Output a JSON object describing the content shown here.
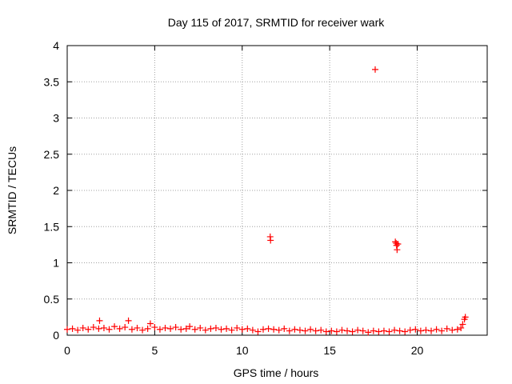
{
  "chart_data": {
    "type": "scatter",
    "title": "Day 115 of 2017, SRMTID for receiver wark",
    "xlabel": "GPS time / hours",
    "ylabel": "SRMTID / TECUs",
    "xlim": [
      0,
      24
    ],
    "ylim": [
      0,
      4
    ],
    "xticks": [
      0,
      5,
      10,
      15,
      20
    ],
    "xtick_labels": [
      "0",
      "5",
      "10",
      "15",
      "20"
    ],
    "yticks": [
      0,
      0.5,
      1,
      1.5,
      2,
      2.5,
      3,
      3.5,
      4
    ],
    "ytick_labels": [
      "0",
      "0.5",
      "1",
      "1.5",
      "2",
      "2.5",
      "3",
      "3.5",
      "4"
    ],
    "grid": true,
    "legend": "none",
    "marker": "+",
    "colors": {
      "series": "#ff0000",
      "grid": "#a0a0a0",
      "axis": "#000000"
    },
    "series": [
      {
        "name": "SRMTID",
        "points": [
          [
            0.0,
            0.08
          ],
          [
            0.3,
            0.09
          ],
          [
            0.6,
            0.07
          ],
          [
            0.9,
            0.1
          ],
          [
            1.2,
            0.08
          ],
          [
            1.5,
            0.11
          ],
          [
            1.8,
            0.09
          ],
          [
            1.85,
            0.2
          ],
          [
            2.1,
            0.1
          ],
          [
            2.4,
            0.08
          ],
          [
            2.7,
            0.12
          ],
          [
            3.0,
            0.09
          ],
          [
            3.3,
            0.11
          ],
          [
            3.5,
            0.2
          ],
          [
            3.7,
            0.08
          ],
          [
            4.0,
            0.1
          ],
          [
            4.3,
            0.07
          ],
          [
            4.6,
            0.09
          ],
          [
            4.75,
            0.16
          ],
          [
            5.0,
            0.11
          ],
          [
            5.3,
            0.08
          ],
          [
            5.6,
            0.1
          ],
          [
            5.9,
            0.09
          ],
          [
            6.2,
            0.11
          ],
          [
            6.5,
            0.08
          ],
          [
            6.8,
            0.09
          ],
          [
            7.0,
            0.12
          ],
          [
            7.3,
            0.08
          ],
          [
            7.6,
            0.1
          ],
          [
            7.9,
            0.07
          ],
          [
            8.2,
            0.09
          ],
          [
            8.5,
            0.1
          ],
          [
            8.8,
            0.08
          ],
          [
            9.1,
            0.09
          ],
          [
            9.4,
            0.07
          ],
          [
            9.7,
            0.1
          ],
          [
            10.0,
            0.08
          ],
          [
            10.3,
            0.09
          ],
          [
            10.6,
            0.07
          ],
          [
            10.9,
            0.05
          ],
          [
            11.2,
            0.08
          ],
          [
            11.5,
            0.09
          ],
          [
            11.6,
            1.36
          ],
          [
            11.62,
            1.31
          ],
          [
            11.8,
            0.08
          ],
          [
            12.1,
            0.07
          ],
          [
            12.4,
            0.09
          ],
          [
            12.7,
            0.06
          ],
          [
            13.0,
            0.08
          ],
          [
            13.3,
            0.07
          ],
          [
            13.6,
            0.06
          ],
          [
            13.9,
            0.08
          ],
          [
            14.2,
            0.06
          ],
          [
            14.5,
            0.07
          ],
          [
            14.8,
            0.05
          ],
          [
            15.1,
            0.06
          ],
          [
            15.4,
            0.05
          ],
          [
            15.7,
            0.07
          ],
          [
            16.0,
            0.06
          ],
          [
            16.3,
            0.05
          ],
          [
            16.6,
            0.07
          ],
          [
            16.9,
            0.06
          ],
          [
            17.2,
            0.04
          ],
          [
            17.5,
            0.06
          ],
          [
            17.6,
            3.67
          ],
          [
            17.8,
            0.05
          ],
          [
            18.1,
            0.06
          ],
          [
            18.4,
            0.05
          ],
          [
            18.7,
            0.07
          ],
          [
            18.75,
            1.29
          ],
          [
            18.8,
            1.27
          ],
          [
            18.82,
            1.24
          ],
          [
            18.85,
            1.18
          ],
          [
            18.9,
            1.26
          ],
          [
            19.0,
            0.06
          ],
          [
            19.3,
            0.05
          ],
          [
            19.6,
            0.07
          ],
          [
            19.9,
            0.08
          ],
          [
            20.2,
            0.06
          ],
          [
            20.5,
            0.07
          ],
          [
            20.8,
            0.06
          ],
          [
            21.1,
            0.08
          ],
          [
            21.4,
            0.06
          ],
          [
            21.7,
            0.09
          ],
          [
            22.0,
            0.07
          ],
          [
            22.3,
            0.08
          ],
          [
            22.5,
            0.1
          ],
          [
            22.6,
            0.15
          ],
          [
            22.7,
            0.22
          ],
          [
            22.75,
            0.25
          ]
        ]
      }
    ]
  }
}
